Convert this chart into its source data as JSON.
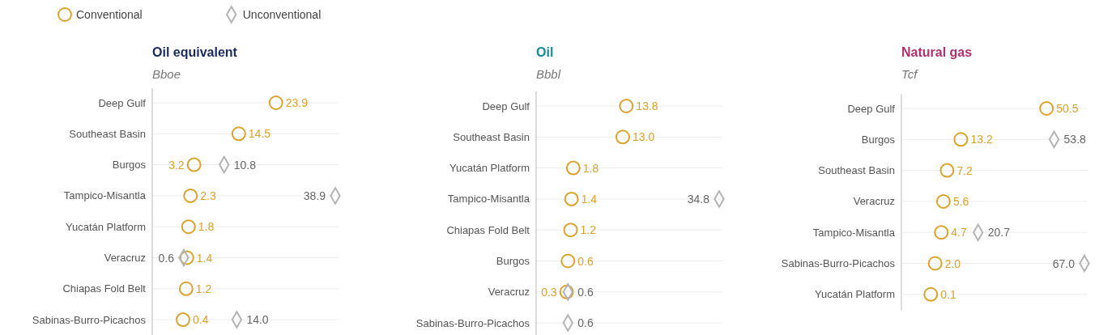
{
  "chart_data": [
    {
      "type": "scatter",
      "orientation": "horizontal",
      "title": "Oil equivalent",
      "subtitle": "Bboe",
      "categories": [
        "Deep Gulf",
        "Southeast Basin",
        "Burgos",
        "Tampico-Misantla",
        "Yucatán Platform",
        "Veracruz",
        "Chiapas Fold Belt",
        "Sabinas-Burro-Picachos"
      ],
      "series": [
        {
          "name": "Conventional",
          "color": "#dba22e",
          "marker": "circle",
          "values": [
            23.9,
            14.5,
            3.2,
            2.3,
            1.8,
            1.4,
            1.2,
            0.4
          ],
          "value_labels": [
            "23.9",
            "14.5",
            "3.2",
            "2.3",
            "1.8",
            "1.4",
            "1.2",
            "0.4"
          ]
        },
        {
          "name": "Unconventional",
          "color": "#b4b4b4",
          "marker": "diamond",
          "values": [
            null,
            null,
            10.8,
            38.9,
            null,
            0.6,
            null,
            14.0
          ],
          "value_labels": [
            null,
            null,
            "10.8",
            "38.9",
            null,
            "0.6",
            null,
            "14.0"
          ]
        }
      ],
      "grid": "y",
      "legend": "top left"
    },
    {
      "type": "scatter",
      "orientation": "horizontal",
      "title": "Oil",
      "subtitle": "Bbbl",
      "categories": [
        "Deep Gulf",
        "Southeast Basin",
        "Yucatán Platform",
        "Tampico-Misantla",
        "Chiapas Fold Belt",
        "Burgos",
        "Veracruz",
        "Sabinas-Burro-Picachos"
      ],
      "series": [
        {
          "color": "#dba22e",
          "marker": "circle",
          "values": [
            13.8,
            13.0,
            1.8,
            1.4,
            1.2,
            0.6,
            0.3,
            null
          ],
          "value_labels": [
            "13.8",
            "13.0",
            "1.8",
            "1.4",
            "1.2",
            "0.6",
            "0.3",
            null
          ]
        },
        {
          "color": "#b4b4b4",
          "marker": "diamond",
          "values": [
            null,
            null,
            null,
            34.8,
            null,
            null,
            0.6,
            0.6
          ],
          "value_labels": [
            null,
            null,
            null,
            "34.8",
            null,
            null,
            "0.6",
            "0.6"
          ]
        }
      ],
      "grid": "y"
    },
    {
      "type": "scatter",
      "orientation": "horizontal",
      "title": "Natural gas",
      "subtitle": "Tcf",
      "categories": [
        "Deep Gulf",
        "Burgos",
        "Southeast Basin",
        "Veracruz",
        "Tampico-Misantla",
        "Sabinas-Burro-Picachos",
        "Yucatán Platform"
      ],
      "series": [
        {
          "color": "#dba22e",
          "marker": "circle",
          "values": [
            50.5,
            13.2,
            7.2,
            5.6,
            4.7,
            2.0,
            0.1
          ],
          "value_labels": [
            "50.5",
            "13.2",
            "7.2",
            "5.6",
            "4.7",
            "2.0",
            "0.1"
          ]
        },
        {
          "color": "#b4b4b4",
          "marker": "diamond",
          "values": [
            null,
            53.8,
            null,
            null,
            20.7,
            67.0,
            null
          ],
          "value_labels": [
            null,
            "53.8",
            null,
            null,
            "20.7",
            "67.0",
            null
          ]
        }
      ],
      "grid": "y"
    }
  ]
}
